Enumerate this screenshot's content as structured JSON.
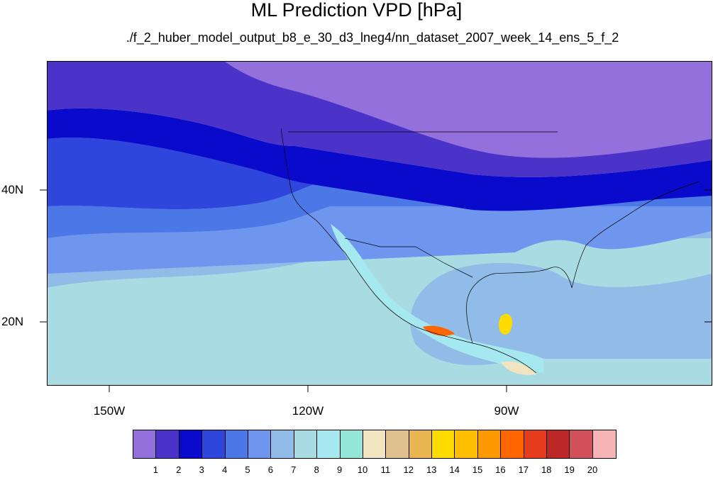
{
  "map": {
    "title": "ML Prediction VPD [hPa]",
    "subtitle": "./f_2_huber_model_output_b8_e_30_d3_lneg4/nn_dataset_2007_week_14_ens_5_f_2",
    "variable_unit": "hPa",
    "projection": "cylindrical equidistant",
    "lon_range": [
      -159.5,
      -59
    ],
    "lat_range": [
      10,
      59
    ],
    "lat_ticks": [
      {
        "lat": 40,
        "label": "40N"
      },
      {
        "lat": 20,
        "label": "20N"
      }
    ],
    "lon_ticks": [
      {
        "lon": -150,
        "label": "150W"
      },
      {
        "lon": -120,
        "label": "120W"
      },
      {
        "lon": -90,
        "label": "90W"
      }
    ]
  },
  "colorbar": {
    "labels": [
      "1",
      "2",
      "3",
      "4",
      "5",
      "6",
      "7",
      "8",
      "9",
      "10",
      "11",
      "12",
      "13",
      "14",
      "15",
      "16",
      "17",
      "18",
      "19",
      "20"
    ],
    "colors": [
      "#9370db",
      "#4b32c8",
      "#0a0acd",
      "#2f46dc",
      "#4b78e6",
      "#6f96ee",
      "#91bce8",
      "#a8dce2",
      "#a6e8f0",
      "#93e6d8",
      "#f2e4c0",
      "#e0c08e",
      "#e8b550",
      "#ffdc00",
      "#ffbe00",
      "#ff9900",
      "#ff6600",
      "#e63c1e",
      "#bc2828",
      "#d2505a",
      "#f6b4b4"
    ]
  }
}
